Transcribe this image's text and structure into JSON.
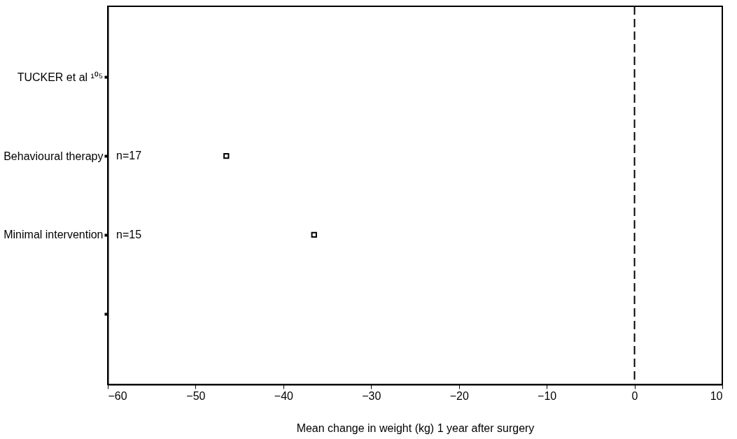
{
  "chart_data": {
    "type": "scatter",
    "orientation": "horizontal",
    "xlabel": "Mean change in weight (kg) 1 year after surgery",
    "categories": [
      "TUCKER et al ¹⁰⁵",
      "Behavioural therapy",
      "Minimal intervention",
      null
    ],
    "series": [
      {
        "color": "#000000",
        "values": [
          null,
          -46.5,
          -36.5,
          null
        ]
      }
    ],
    "xlim": [
      -60,
      10
    ],
    "xticks": [
      -60,
      -50,
      -40,
      -30,
      -20,
      -10,
      0,
      10
    ],
    "marker": "square",
    "grid": false,
    "ref_lines": [
      {
        "axis": "x",
        "value": 0,
        "line_style": "dashed",
        "color": "#000000"
      }
    ],
    "annotations": [
      "n=17",
      "n=15"
    ]
  }
}
